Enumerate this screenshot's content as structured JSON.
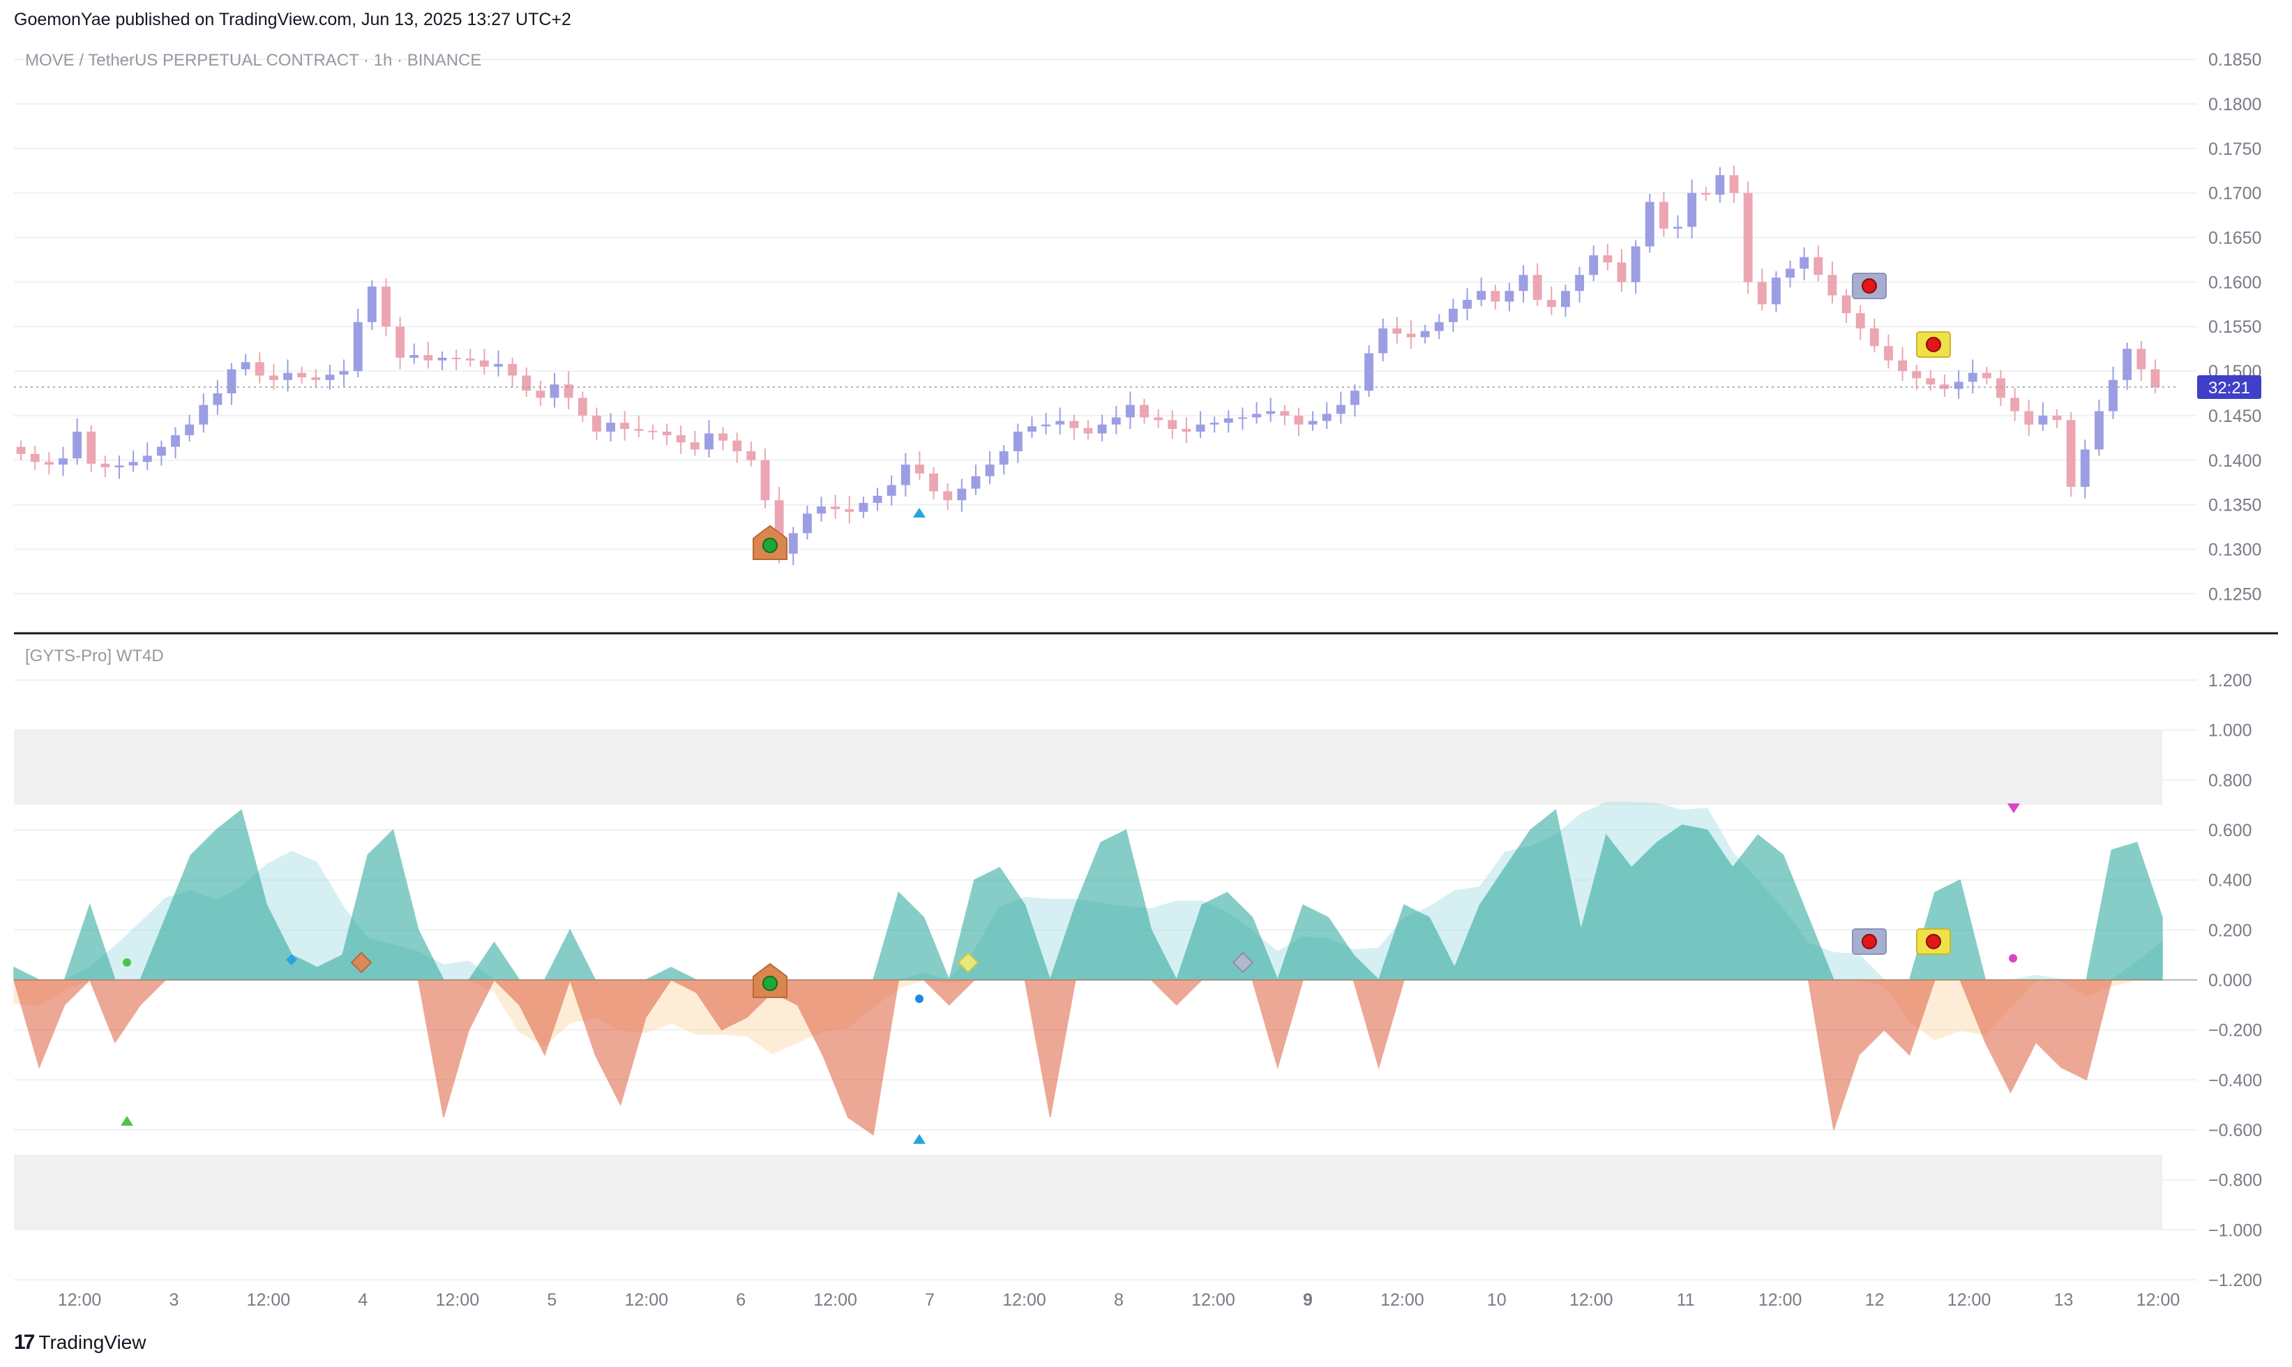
{
  "header": {
    "published": "GoemonYae published on TradingView.com, Jun 13, 2025 13:27 UTC+2"
  },
  "footer": {
    "logo_text": "TradingView"
  },
  "colors": {
    "up_candle": "#9c9ee3",
    "down_candle": "#eba6b2",
    "price_badge": "#3f3fc7",
    "teal": "#26a69a",
    "light_teal": "#a6dde4",
    "red_orange": "#e0613f",
    "peach": "#fbd9a8",
    "grid": "#eef0f3",
    "axis_text": "#787b86",
    "pane_divider": "#131722",
    "zone_gray": "#e9e9ea"
  },
  "icons": {
    "buy_marker": "green-circle-on-orange-house-icon",
    "sell_marker": "red-circle-on-gray-bubble-icon",
    "sell_marker_2": "red-circle-on-yellow-bubble-icon",
    "tradingview_logo": "tv-logo-icon"
  },
  "chart_data": [
    {
      "type": "candlestick",
      "title": "MOVE / TetherUS PERPETUAL CONTRACT · 1h · BINANCE",
      "y_ticks": [
        "0.1850",
        "0.1800",
        "0.1750",
        "0.1700",
        "0.1650",
        "0.1600",
        "0.1550",
        "0.1500",
        "0.1450",
        "0.1400",
        "0.1350",
        "0.1300",
        "0.1250"
      ],
      "ylim": [
        0.1215,
        0.1865
      ],
      "current_price_label": "32:21",
      "current_price": 0.1482,
      "x_ticks": [
        "12:00",
        "3",
        "12:00",
        "4",
        "12:00",
        "5",
        "12:00",
        "6",
        "12:00",
        "7",
        "12:00",
        "8",
        "12:00",
        "9",
        "12:00",
        "10",
        "12:00",
        "11",
        "12:00",
        "12",
        "12:00",
        "13",
        "12:00"
      ],
      "close_series": [
        0.1407,
        0.1398,
        0.1395,
        0.1402,
        0.1432,
        0.1396,
        0.1392,
        0.1394,
        0.1398,
        0.1405,
        0.1415,
        0.1428,
        0.144,
        0.1462,
        0.1475,
        0.1502,
        0.151,
        0.1495,
        0.149,
        0.1498,
        0.1493,
        0.149,
        0.1496,
        0.15,
        0.1555,
        0.1595,
        0.155,
        0.1515,
        0.1518,
        0.1512,
        0.1515,
        0.1514,
        0.1512,
        0.1505,
        0.1508,
        0.1495,
        0.1478,
        0.147,
        0.1485,
        0.147,
        0.145,
        0.1432,
        0.1442,
        0.1435,
        0.1433,
        0.1432,
        0.1428,
        0.142,
        0.1412,
        0.143,
        0.1422,
        0.141,
        0.14,
        0.1355,
        0.1295,
        0.1318,
        0.134,
        0.1348,
        0.1345,
        0.1342,
        0.1352,
        0.136,
        0.1372,
        0.1395,
        0.1385,
        0.1365,
        0.1355,
        0.1368,
        0.1382,
        0.1395,
        0.141,
        0.1432,
        0.1438,
        0.144,
        0.1444,
        0.1436,
        0.143,
        0.144,
        0.1448,
        0.1462,
        0.1448,
        0.1445,
        0.1435,
        0.1432,
        0.144,
        0.1442,
        0.1447,
        0.1448,
        0.1452,
        0.1455,
        0.145,
        0.144,
        0.1444,
        0.1452,
        0.1462,
        0.1478,
        0.152,
        0.1548,
        0.1542,
        0.1538,
        0.1545,
        0.1555,
        0.157,
        0.158,
        0.159,
        0.1578,
        0.159,
        0.1608,
        0.158,
        0.1572,
        0.159,
        0.1608,
        0.163,
        0.1622,
        0.16,
        0.164,
        0.169,
        0.166,
        0.1662,
        0.17,
        0.1698,
        0.172,
        0.17,
        0.16,
        0.1575,
        0.1605,
        0.1615,
        0.1628,
        0.1608,
        0.1585,
        0.1565,
        0.1548,
        0.1528,
        0.1512,
        0.15,
        0.1492,
        0.1485,
        0.148,
        0.1488,
        0.1498,
        0.1492,
        0.147,
        0.1455,
        0.144,
        0.145,
        0.1445,
        0.137,
        0.1412,
        0.1455,
        0.149,
        0.1525,
        0.1502,
        0.1482
      ]
    },
    {
      "type": "area",
      "title": "[GYTS-Pro] WT4D",
      "y_ticks": [
        "1.200",
        "1.000",
        "0.800",
        "0.600",
        "0.400",
        "0.200",
        "0.000",
        "−0.200",
        "−0.400",
        "−0.600",
        "−0.800",
        "−1.000",
        "−1.200"
      ],
      "ylim": [
        -1.27,
        1.27
      ],
      "overbought_zone": [
        0.7,
        1.0
      ],
      "oversold_zone": [
        -1.0,
        -0.7
      ],
      "fast_wave": [
        0.05,
        -0.35,
        -0.1,
        0.3,
        -0.25,
        -0.1,
        0.25,
        0.5,
        0.6,
        0.68,
        0.3,
        0.1,
        0.05,
        0.1,
        0.5,
        0.6,
        0.2,
        -0.55,
        -0.2,
        0.15,
        -0.1,
        -0.3,
        0.2,
        -0.3,
        -0.5,
        -0.15,
        0.05,
        -0.05,
        -0.2,
        -0.15,
        -0.05,
        -0.1,
        -0.3,
        -0.55,
        -0.62,
        0.35,
        0.25,
        -0.1,
        0.4,
        0.45,
        0.3,
        -0.55,
        0.3,
        0.55,
        0.6,
        0.2,
        -0.1,
        0.3,
        0.35,
        0.25,
        -0.35,
        0.3,
        0.25,
        0.1,
        -0.35,
        0.3,
        0.25,
        0.05,
        0.3,
        0.45,
        0.6,
        0.68,
        0.2,
        0.58,
        0.45,
        0.55,
        0.62,
        0.6,
        0.45,
        0.58,
        0.5,
        0.25,
        -0.6,
        -0.3,
        -0.2,
        -0.3,
        0.35,
        0.4,
        -0.25,
        -0.45,
        -0.25,
        -0.35,
        -0.4,
        0.52,
        0.55,
        0.25
      ]
    }
  ]
}
